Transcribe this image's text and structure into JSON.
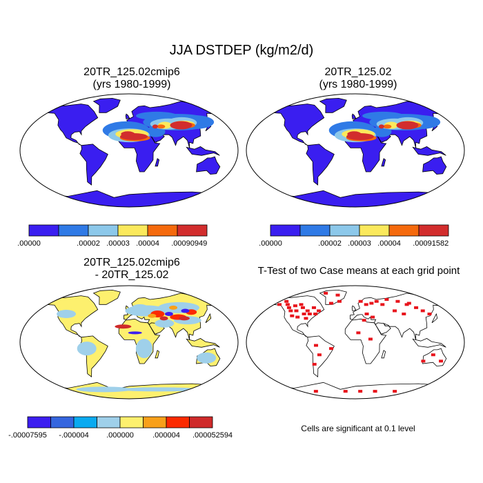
{
  "figure": {
    "title": "JJA DSTDEP (kg/m2/d)"
  },
  "panels": {
    "p1": {
      "line1": "20TR_125.02cmip6",
      "line2": "(yrs 1980-1999)"
    },
    "p2": {
      "line1": "20TR_125.02",
      "line2": "(yrs 1980-1999)"
    },
    "p3": {
      "line1": "20TR_125.02cmip6",
      "line2": "- 20TR_125.02"
    },
    "p4": {
      "title": "T-Test of two Case means at each grid point",
      "note": "Cells are significant at 0.1 level"
    }
  },
  "colorbars": {
    "cb1": {
      "colors": [
        "#3a1ef0",
        "#2f7ae6",
        "#8cc8ea",
        "#fbe95c",
        "#f56a0d",
        "#d22d2d"
      ],
      "labels": [
        ".00000",
        ".00002",
        ".00003",
        ".00004",
        ".00090949"
      ]
    },
    "cb2": {
      "colors": [
        "#3a1ef0",
        "#2f7ae6",
        "#8cc8ea",
        "#fbe95c",
        "#f56a0d",
        "#d22d2d"
      ],
      "labels": [
        ".00000",
        ".00002",
        ".00003",
        ".00004",
        ".00091582"
      ]
    },
    "cb3": {
      "colors": [
        "#3c1ef0",
        "#3566df",
        "#0aaaf0",
        "#9fd0ea",
        "#fdf06e",
        "#f8a01a",
        "#fb2a00",
        "#cf2a2a"
      ],
      "labels": [
        "-.00007595",
        "-.000004",
        ".000000",
        ".000004",
        ".000052594"
      ]
    }
  },
  "chart_data": [
    {
      "type": "heatmap",
      "title": "20TR_125.02cmip6 (yrs 1980-1999)",
      "map": "global land, Robinson projection",
      "levels": [
        0.0,
        2e-05,
        3e-05,
        4e-05,
        0.00090949
      ],
      "level_colors": [
        "#3a1ef0",
        "#2f7ae6",
        "#8cc8ea",
        "#fbe95c",
        "#f56a0d",
        "#d22d2d"
      ]
    },
    {
      "type": "heatmap",
      "title": "20TR_125.02 (yrs 1980-1999)",
      "map": "global land, Robinson projection",
      "levels": [
        0.0,
        2e-05,
        3e-05,
        4e-05,
        0.00091582
      ],
      "level_colors": [
        "#3a1ef0",
        "#2f7ae6",
        "#8cc8ea",
        "#fbe95c",
        "#f56a0d",
        "#d22d2d"
      ]
    },
    {
      "type": "heatmap",
      "title": "20TR_125.02cmip6 - 20TR_125.02",
      "map": "global land, Robinson projection",
      "levels": [
        -7.595e-05,
        -4e-06,
        0.0,
        4e-06,
        5.2594e-05
      ],
      "level_colors": [
        "#3c1ef0",
        "#3566df",
        "#0aaaf0",
        "#9fd0ea",
        "#fdf06e",
        "#f8a01a",
        "#fb2a00",
        "#cf2a2a"
      ]
    },
    {
      "type": "heatmap",
      "title": "T-Test of two Case means at each grid point",
      "map": "global, Robinson projection",
      "significance_level": 0.1,
      "significant_color": "#e8141c"
    }
  ]
}
